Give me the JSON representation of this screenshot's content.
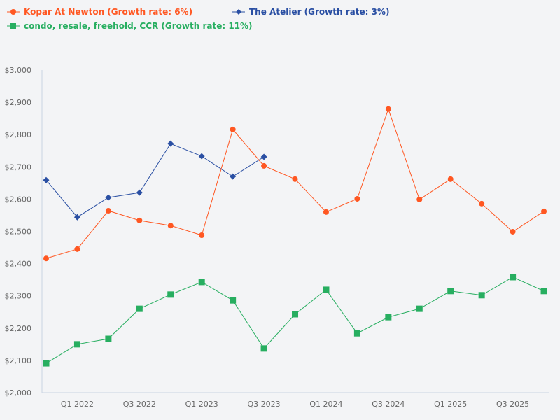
{
  "chart_data": {
    "type": "line",
    "title": "",
    "xlabel": "",
    "ylabel": "",
    "ylim": [
      2000,
      3000
    ],
    "y_ticks": [
      "$2,000",
      "$2,100",
      "$2,200",
      "$2,300",
      "$2,400",
      "$2,500",
      "$2,600",
      "$2,700",
      "$2,800",
      "$2,900",
      "$3,000"
    ],
    "x_tick_labels": [
      "Q1 2022",
      "Q3 2022",
      "Q1 2023",
      "Q3 2023",
      "Q1 2024",
      "Q3 2024",
      "Q1 2025",
      "Q3 2025"
    ],
    "x_period": "quarterly",
    "grid": false,
    "legend_placement": "top-left",
    "series": [
      {
        "name": "Kopar At Newton (Growth rate: 6%)",
        "color": "#ff5722",
        "marker": "circle",
        "values": [
          2416,
          2445,
          2564,
          2534,
          2518,
          2488,
          2816,
          2703,
          2662,
          2560,
          2601,
          2879,
          2599,
          2662,
          2586,
          2499,
          2562
        ]
      },
      {
        "name": "The Atelier (Growth rate: 3%)",
        "color": "#2a4fa3",
        "marker": "diamond",
        "values": [
          2659,
          2544,
          2605,
          2620,
          2772,
          2733,
          2670,
          2731
        ]
      },
      {
        "name": "condo, resale, freehold, CCR (Growth rate: 11%)",
        "color": "#27ae60",
        "marker": "square",
        "values": [
          2091,
          2150,
          2167,
          2260,
          2304,
          2343,
          2286,
          2137,
          2243,
          2319,
          2184,
          2234,
          2260,
          2315,
          2302,
          2358,
          2315
        ]
      }
    ]
  }
}
